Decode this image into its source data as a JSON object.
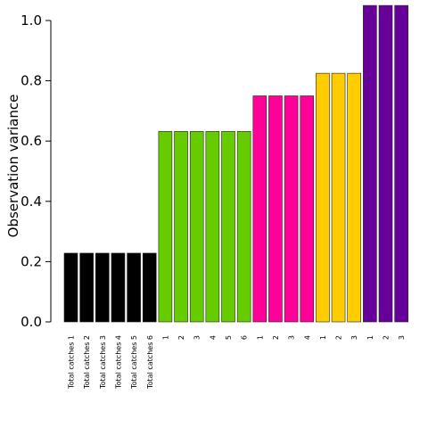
{
  "chart_data": {
    "type": "bar",
    "title": "",
    "xlabel": "",
    "ylabel": "Observation variance",
    "ylim": [
      0,
      1.0
    ],
    "yticks": [
      "0.0",
      "0.2",
      "0.4",
      "0.6",
      "0.8",
      "1.0"
    ],
    "grid": false,
    "categories": [
      "Total catches 1",
      "Total catches 2",
      "Total catches 3",
      "Total catches 4",
      "Total catches 5",
      "Total catches 6",
      "1",
      "2",
      "3",
      "4",
      "5",
      "6",
      "1",
      "2",
      "3",
      "4",
      "1",
      "2",
      "3",
      "1",
      "2",
      "3"
    ],
    "values": [
      0.228,
      0.228,
      0.228,
      0.228,
      0.228,
      0.228,
      0.632,
      0.632,
      0.632,
      0.632,
      0.632,
      0.632,
      0.75,
      0.75,
      0.75,
      0.75,
      0.825,
      0.825,
      0.825,
      1.05,
      1.05,
      1.05
    ],
    "colors": [
      "#000000",
      "#000000",
      "#000000",
      "#000000",
      "#000000",
      "#000000",
      "#66cc00",
      "#66cc00",
      "#66cc00",
      "#66cc00",
      "#66cc00",
      "#66cc00",
      "#ff0099",
      "#ff0099",
      "#ff0099",
      "#ff0099",
      "#ffcc00",
      "#ffcc00",
      "#ffcc00",
      "#660099",
      "#660099",
      "#660099"
    ]
  }
}
